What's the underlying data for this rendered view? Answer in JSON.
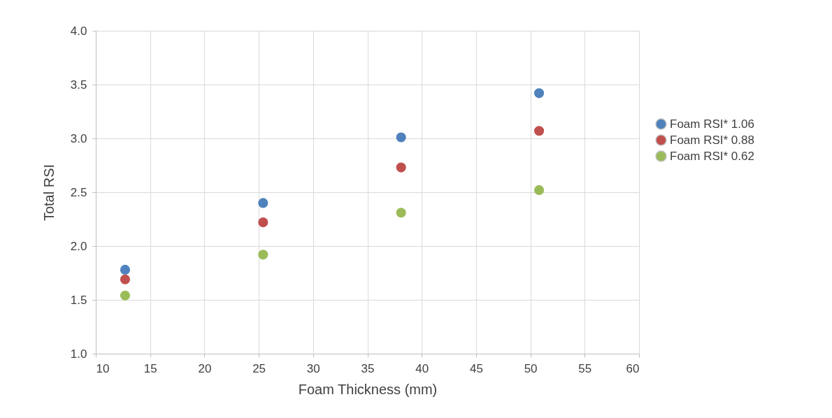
{
  "chart_data": {
    "type": "scatter",
    "xlabel": "Foam Thickness (mm)",
    "ylabel": "Total RSI",
    "x": [
      12.7,
      25.4,
      38.1,
      50.8
    ],
    "series": [
      {
        "name": "Foam RSI* 1.06",
        "color": "#4f81bd",
        "values": [
          1.78,
          2.4,
          3.01,
          3.42
        ]
      },
      {
        "name": "Foam RSI* 0.88",
        "color": "#c0504d",
        "values": [
          1.69,
          2.22,
          2.73,
          3.07
        ]
      },
      {
        "name": "Foam RSI* 0.62",
        "color": "#9bbb59",
        "values": [
          1.54,
          1.92,
          2.31,
          2.52
        ]
      }
    ],
    "xlim": [
      10,
      60
    ],
    "xticks": [
      10,
      15,
      20,
      25,
      30,
      35,
      40,
      45,
      50,
      55,
      60
    ],
    "ylim": [
      1.0,
      4.0
    ],
    "yticks": [
      {
        "value": 1,
        "label": "1.0"
      },
      1.5,
      {
        "value": 2,
        "label": "2.0"
      },
      2.5,
      {
        "value": 3,
        "label": "3.0"
      },
      3.5,
      {
        "value": 4,
        "label": "4.0"
      }
    ],
    "grid": true,
    "legend": "right",
    "marker": "circle"
  }
}
